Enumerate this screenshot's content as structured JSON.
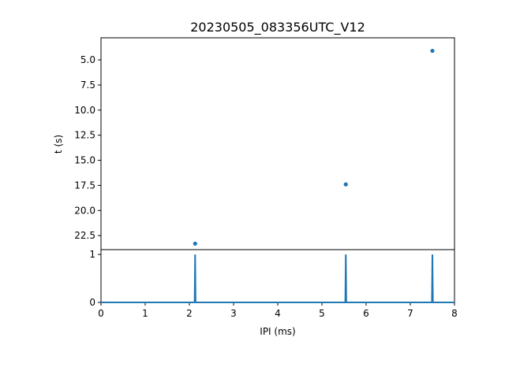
{
  "chart_data": [
    {
      "type": "scatter",
      "title": "20230505_083356UTC_V12",
      "xlabel": "",
      "ylabel": "t (s)",
      "xlim": [
        0,
        8
      ],
      "ylim": [
        23.9,
        2.8
      ],
      "y_inverted": true,
      "yticks": [
        "5.0",
        "7.5",
        "10.0",
        "12.5",
        "15.0",
        "17.5",
        "20.0",
        "22.5"
      ],
      "ytick_values": [
        5.0,
        7.5,
        10.0,
        12.5,
        15.0,
        17.5,
        20.0,
        22.5
      ],
      "series": [
        {
          "x": [
            2.13,
            5.54,
            7.5
          ],
          "y": [
            23.3,
            17.4,
            4.1
          ],
          "color": "#1f77b4"
        }
      ],
      "grid": false
    },
    {
      "type": "line",
      "title": "",
      "xlabel": "IPI (ms)",
      "ylabel": "",
      "xlim": [
        0,
        8
      ],
      "ylim": [
        0,
        1.1
      ],
      "xticks": [
        "0",
        "1",
        "2",
        "3",
        "4",
        "5",
        "6",
        "7",
        "8"
      ],
      "xtick_values": [
        0,
        1,
        2,
        3,
        4,
        5,
        6,
        7,
        8
      ],
      "yticks": [
        "0",
        "1"
      ],
      "ytick_values": [
        0,
        1
      ],
      "spikes": [
        2.13,
        5.54,
        7.5
      ],
      "baseline": 0,
      "peak": 1,
      "color": "#1f77b4",
      "grid": false
    }
  ]
}
